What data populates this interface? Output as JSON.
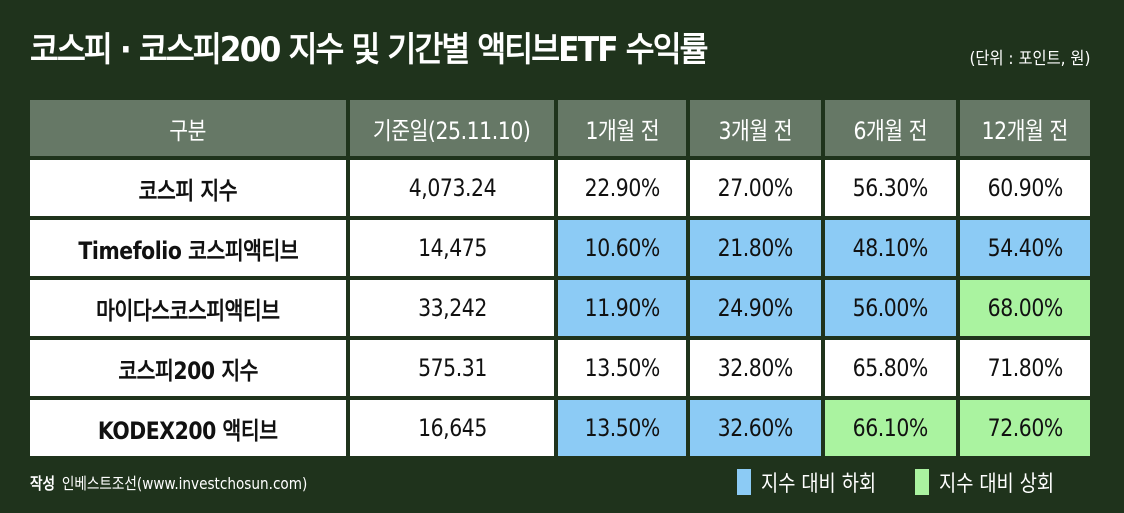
{
  "title": "코스피 · 코스피200 지수 및 기간별 액티브ETF 수익률",
  "unit": "(단위 : 포인트, 원)",
  "chart_data": {
    "type": "table",
    "columns": [
      "구분",
      "기준일(25.11.10)",
      "1개월 전",
      "3개월 전",
      "6개월 전",
      "12개월 전"
    ],
    "rows": [
      {
        "name": "코스피 지수",
        "base": "4,073.24",
        "values": [
          "22.90%",
          "27.00%",
          "56.30%",
          "60.90%"
        ],
        "status": [
          "index",
          "index",
          "index",
          "index"
        ]
      },
      {
        "name": "Timefolio 코스피액티브",
        "base": "14,475",
        "values": [
          "10.60%",
          "21.80%",
          "48.10%",
          "54.40%"
        ],
        "status": [
          "below",
          "below",
          "below",
          "below"
        ]
      },
      {
        "name": "마이다스코스피액티브",
        "base": "33,242",
        "values": [
          "11.90%",
          "24.90%",
          "56.00%",
          "68.00%"
        ],
        "status": [
          "below",
          "below",
          "below",
          "above"
        ]
      },
      {
        "name": "코스피200 지수",
        "base": "575.31",
        "values": [
          "13.50%",
          "32.80%",
          "65.80%",
          "71.80%"
        ],
        "status": [
          "index",
          "index",
          "index",
          "index"
        ]
      },
      {
        "name": "KODEX200 액티브",
        "base": "16,645",
        "values": [
          "13.50%",
          "32.60%",
          "66.10%",
          "72.60%"
        ],
        "status": [
          "below",
          "below",
          "above",
          "above"
        ]
      }
    ]
  },
  "colors": {
    "background": "#1f331c",
    "header": "#667866",
    "below": "#8ccbf5",
    "above": "#aaf3a0"
  },
  "footer": {
    "label": "작성",
    "source": "인베스트조선(www.investchosun.com)"
  },
  "legend": [
    {
      "label": "지수 대비 하회",
      "key": "below"
    },
    {
      "label": "지수 대비 상회",
      "key": "above"
    }
  ]
}
